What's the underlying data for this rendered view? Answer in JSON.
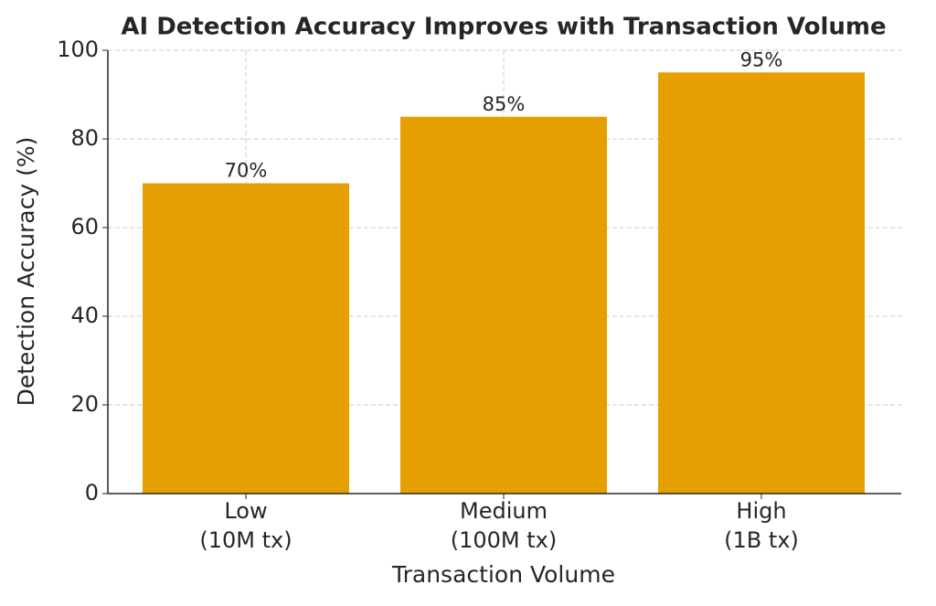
{
  "chart_data": {
    "type": "bar",
    "title": "AI Detection Accuracy Improves with Transaction Volume",
    "x_label": "Transaction Volume",
    "y_label": "Detection Accuracy (%)",
    "categories": [
      "Low\n(10M tx)",
      "Medium\n(100M tx)",
      "High\n(1B tx)"
    ],
    "values": [
      70,
      85,
      95
    ],
    "value_labels": [
      "70%",
      "85%",
      "95%"
    ],
    "color": "#e69f00",
    "ylim": [
      0,
      100
    ],
    "yticks": [
      0,
      20,
      40,
      60,
      80,
      100
    ],
    "grid": true
  }
}
